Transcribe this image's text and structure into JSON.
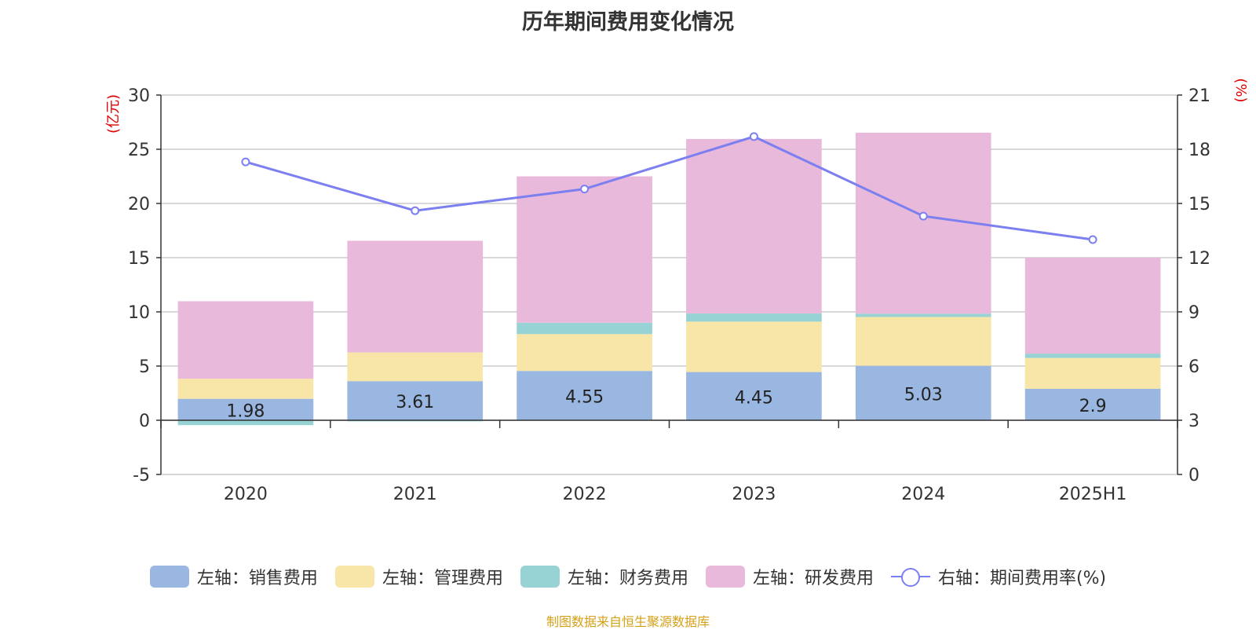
{
  "chart_data": {
    "type": "bar",
    "stacked": true,
    "title": "历年期间费用变化情况",
    "ylabel": "(亿元)",
    "y2label": "(%)",
    "categories": [
      "2020",
      "2021",
      "2022",
      "2023",
      "2024",
      "2025H1"
    ],
    "ylim": [
      -5,
      30
    ],
    "yticks": [
      -5,
      0,
      5,
      10,
      15,
      20,
      25,
      30
    ],
    "y2lim": [
      0,
      21
    ],
    "y2ticks": [
      0,
      3,
      6,
      9,
      12,
      15,
      18,
      21
    ],
    "grid": true,
    "legend_position": "bottom",
    "series": [
      {
        "name": "左轴：销售费用",
        "axis": "left",
        "color": "#9ab7e2",
        "values": [
          1.98,
          3.61,
          4.55,
          4.45,
          5.03,
          2.9
        ],
        "labels": [
          "1.98",
          "3.61",
          "4.55",
          "4.45",
          "5.03",
          "2.9"
        ]
      },
      {
        "name": "左轴：管理费用",
        "axis": "left",
        "color": "#f8e6a8",
        "values": [
          1.85,
          2.65,
          3.4,
          4.65,
          4.5,
          2.85
        ]
      },
      {
        "name": "左轴：财务费用",
        "axis": "left",
        "color": "#97d3d4",
        "values": [
          -0.45,
          -0.1,
          1.05,
          0.75,
          0.3,
          0.4
        ]
      },
      {
        "name": "左轴：研发费用",
        "axis": "left",
        "color": "#e8b9da",
        "values": [
          7.15,
          10.3,
          13.5,
          16.1,
          16.7,
          8.85
        ]
      },
      {
        "name": "右轴：期间费用率(%)",
        "axis": "right",
        "type": "line",
        "color": "#7b7ff0",
        "values": [
          17.3,
          14.6,
          15.8,
          18.7,
          14.3,
          13.0
        ]
      }
    ],
    "source": "制图数据来自恒生聚源数据库"
  }
}
